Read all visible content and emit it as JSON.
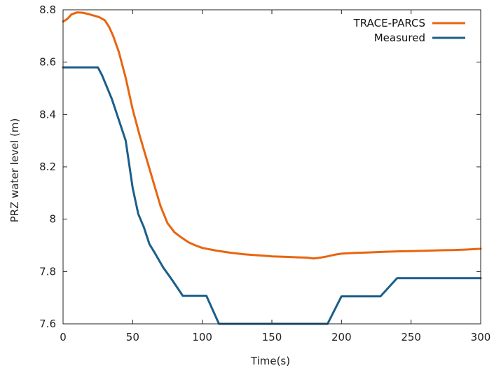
{
  "chart_data": {
    "type": "line",
    "xlabel": "Time(s)",
    "ylabel": "PRZ water level (m)",
    "xlim": [
      0,
      300
    ],
    "ylim": [
      7.6,
      8.8
    ],
    "xticks": [
      "0",
      "50",
      "100",
      "150",
      "200",
      "250",
      "300"
    ],
    "yticks": [
      "7.6",
      "7.8",
      "8",
      "8.2",
      "8.4",
      "8.6",
      "8.8"
    ],
    "grid": false,
    "legend_position": "top-right",
    "series": [
      {
        "name": "TRACE-PARCS",
        "color": "#e8650f",
        "x": [
          0,
          3,
          6,
          10,
          14,
          18,
          22,
          26,
          30,
          33,
          36,
          40,
          45,
          50,
          55,
          60,
          65,
          70,
          75,
          80,
          85,
          90,
          95,
          100,
          110,
          120,
          130,
          140,
          150,
          160,
          170,
          175,
          180,
          185,
          190,
          195,
          200,
          210,
          220,
          230,
          240,
          250,
          260,
          270,
          280,
          290,
          300
        ],
        "y": [
          8.755,
          8.765,
          8.782,
          8.79,
          8.789,
          8.784,
          8.778,
          8.772,
          8.76,
          8.735,
          8.7,
          8.64,
          8.54,
          8.42,
          8.32,
          8.23,
          8.14,
          8.05,
          7.985,
          7.95,
          7.93,
          7.912,
          7.9,
          7.89,
          7.88,
          7.872,
          7.866,
          7.862,
          7.858,
          7.856,
          7.854,
          7.853,
          7.85,
          7.853,
          7.858,
          7.864,
          7.868,
          7.871,
          7.873,
          7.875,
          7.877,
          7.878,
          7.879,
          7.881,
          7.882,
          7.884,
          7.887
        ]
      },
      {
        "name": "Measured",
        "color": "#1b5e8a",
        "x": [
          0,
          25,
          28,
          35,
          40,
          45,
          50,
          54,
          58,
          62,
          66,
          72,
          78,
          86,
          103,
          112,
          190,
          200,
          228,
          240,
          300
        ],
        "y": [
          8.58,
          8.58,
          8.55,
          8.46,
          8.38,
          8.3,
          8.12,
          8.02,
          7.97,
          7.905,
          7.87,
          7.815,
          7.77,
          7.707,
          7.707,
          7.6,
          7.6,
          7.705,
          7.705,
          7.775,
          7.775
        ]
      }
    ]
  }
}
